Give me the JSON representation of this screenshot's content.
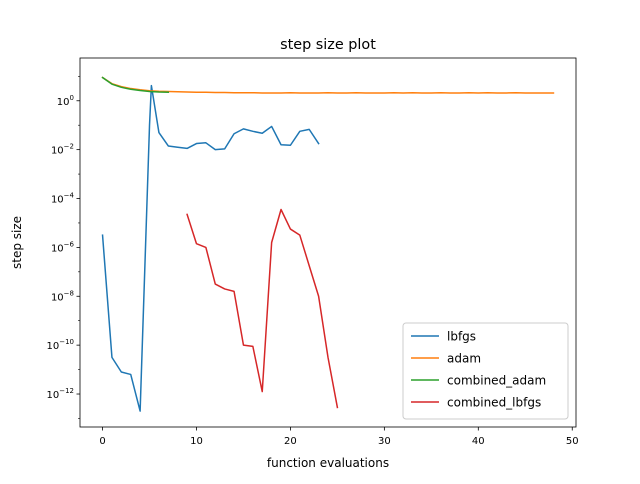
{
  "chart_data": {
    "type": "line",
    "title": "step size plot",
    "xlabel": "function evaluations",
    "ylabel": "step size",
    "xlim": [
      -2.4,
      50.4
    ],
    "ylim_log10": [
      -13.35,
      1.75
    ],
    "yscale": "log",
    "grid": false,
    "legend_position": "lower right",
    "x_ticks": [
      {
        "value": 0,
        "label": "0"
      },
      {
        "value": 10,
        "label": "10"
      },
      {
        "value": 20,
        "label": "20"
      },
      {
        "value": 30,
        "label": "30"
      },
      {
        "value": 40,
        "label": "40"
      },
      {
        "value": 50,
        "label": "50"
      }
    ],
    "y_ticks": [
      {
        "exp": 0,
        "base": "10",
        "sup": "0"
      },
      {
        "exp": -2,
        "base": "10",
        "sup": "−2"
      },
      {
        "exp": -4,
        "base": "10",
        "sup": "−4"
      },
      {
        "exp": -6,
        "base": "10",
        "sup": "−6"
      },
      {
        "exp": -8,
        "base": "10",
        "sup": "−8"
      },
      {
        "exp": -10,
        "base": "10",
        "sup": "−10"
      },
      {
        "exp": -12,
        "base": "10",
        "sup": "−12"
      }
    ],
    "series": [
      {
        "name": "lbfgs",
        "color": "#1f77b4",
        "x": [
          0,
          1,
          2,
          3,
          4,
          5,
          5.2,
          6,
          7,
          8,
          9,
          10,
          11,
          12,
          13,
          14,
          15,
          16,
          17,
          18,
          19,
          20,
          21,
          22,
          23
        ],
        "y_log10": [
          -5.5,
          -10.5,
          -11.1,
          -11.2,
          -12.7,
          -1.0,
          0.62,
          -1.3,
          -1.85,
          -1.9,
          -1.95,
          -1.75,
          -1.72,
          -2.0,
          -1.97,
          -1.35,
          -1.15,
          -1.25,
          -1.33,
          -1.05,
          -1.8,
          -1.82,
          -1.25,
          -1.17,
          -1.75
        ]
      },
      {
        "name": "adam",
        "color": "#ff7f0e",
        "x": [
          0,
          1,
          2,
          3,
          4,
          5,
          6,
          7,
          8,
          9,
          10,
          11,
          12,
          13,
          14,
          15,
          16,
          17,
          18,
          19,
          20,
          21,
          22,
          23,
          24,
          25,
          26,
          27,
          28,
          29,
          30,
          31,
          32,
          33,
          34,
          35,
          36,
          37,
          38,
          39,
          40,
          41,
          42,
          43,
          44,
          45,
          46,
          47,
          48
        ],
        "y_log10": [
          0.95,
          0.7,
          0.58,
          0.5,
          0.45,
          0.41,
          0.39,
          0.38,
          0.37,
          0.36,
          0.35,
          0.35,
          0.34,
          0.34,
          0.33,
          0.33,
          0.33,
          0.32,
          0.32,
          0.32,
          0.33,
          0.32,
          0.32,
          0.32,
          0.33,
          0.32,
          0.32,
          0.33,
          0.32,
          0.32,
          0.32,
          0.33,
          0.32,
          0.33,
          0.32,
          0.32,
          0.33,
          0.32,
          0.32,
          0.33,
          0.32,
          0.33,
          0.32,
          0.32,
          0.33,
          0.32,
          0.32,
          0.32,
          0.32
        ]
      },
      {
        "name": "combined_adam",
        "color": "#2ca02c",
        "x": [
          0,
          1,
          2,
          3,
          4,
          5,
          6,
          7
        ],
        "y_log10": [
          0.95,
          0.68,
          0.55,
          0.47,
          0.42,
          0.38,
          0.36,
          0.35
        ]
      },
      {
        "name": "combined_lbfgs",
        "color": "#d62728",
        "x": [
          9,
          10,
          11,
          12,
          13,
          14,
          15,
          16,
          17,
          18,
          19,
          20,
          21,
          22,
          23,
          24,
          25
        ],
        "y_log10": [
          -4.65,
          -5.85,
          -6.0,
          -7.5,
          -7.7,
          -7.8,
          -10.0,
          -10.05,
          -11.9,
          -5.8,
          -4.45,
          -5.25,
          -5.5,
          -6.75,
          -8.0,
          -10.5,
          -12.55
        ]
      }
    ]
  }
}
